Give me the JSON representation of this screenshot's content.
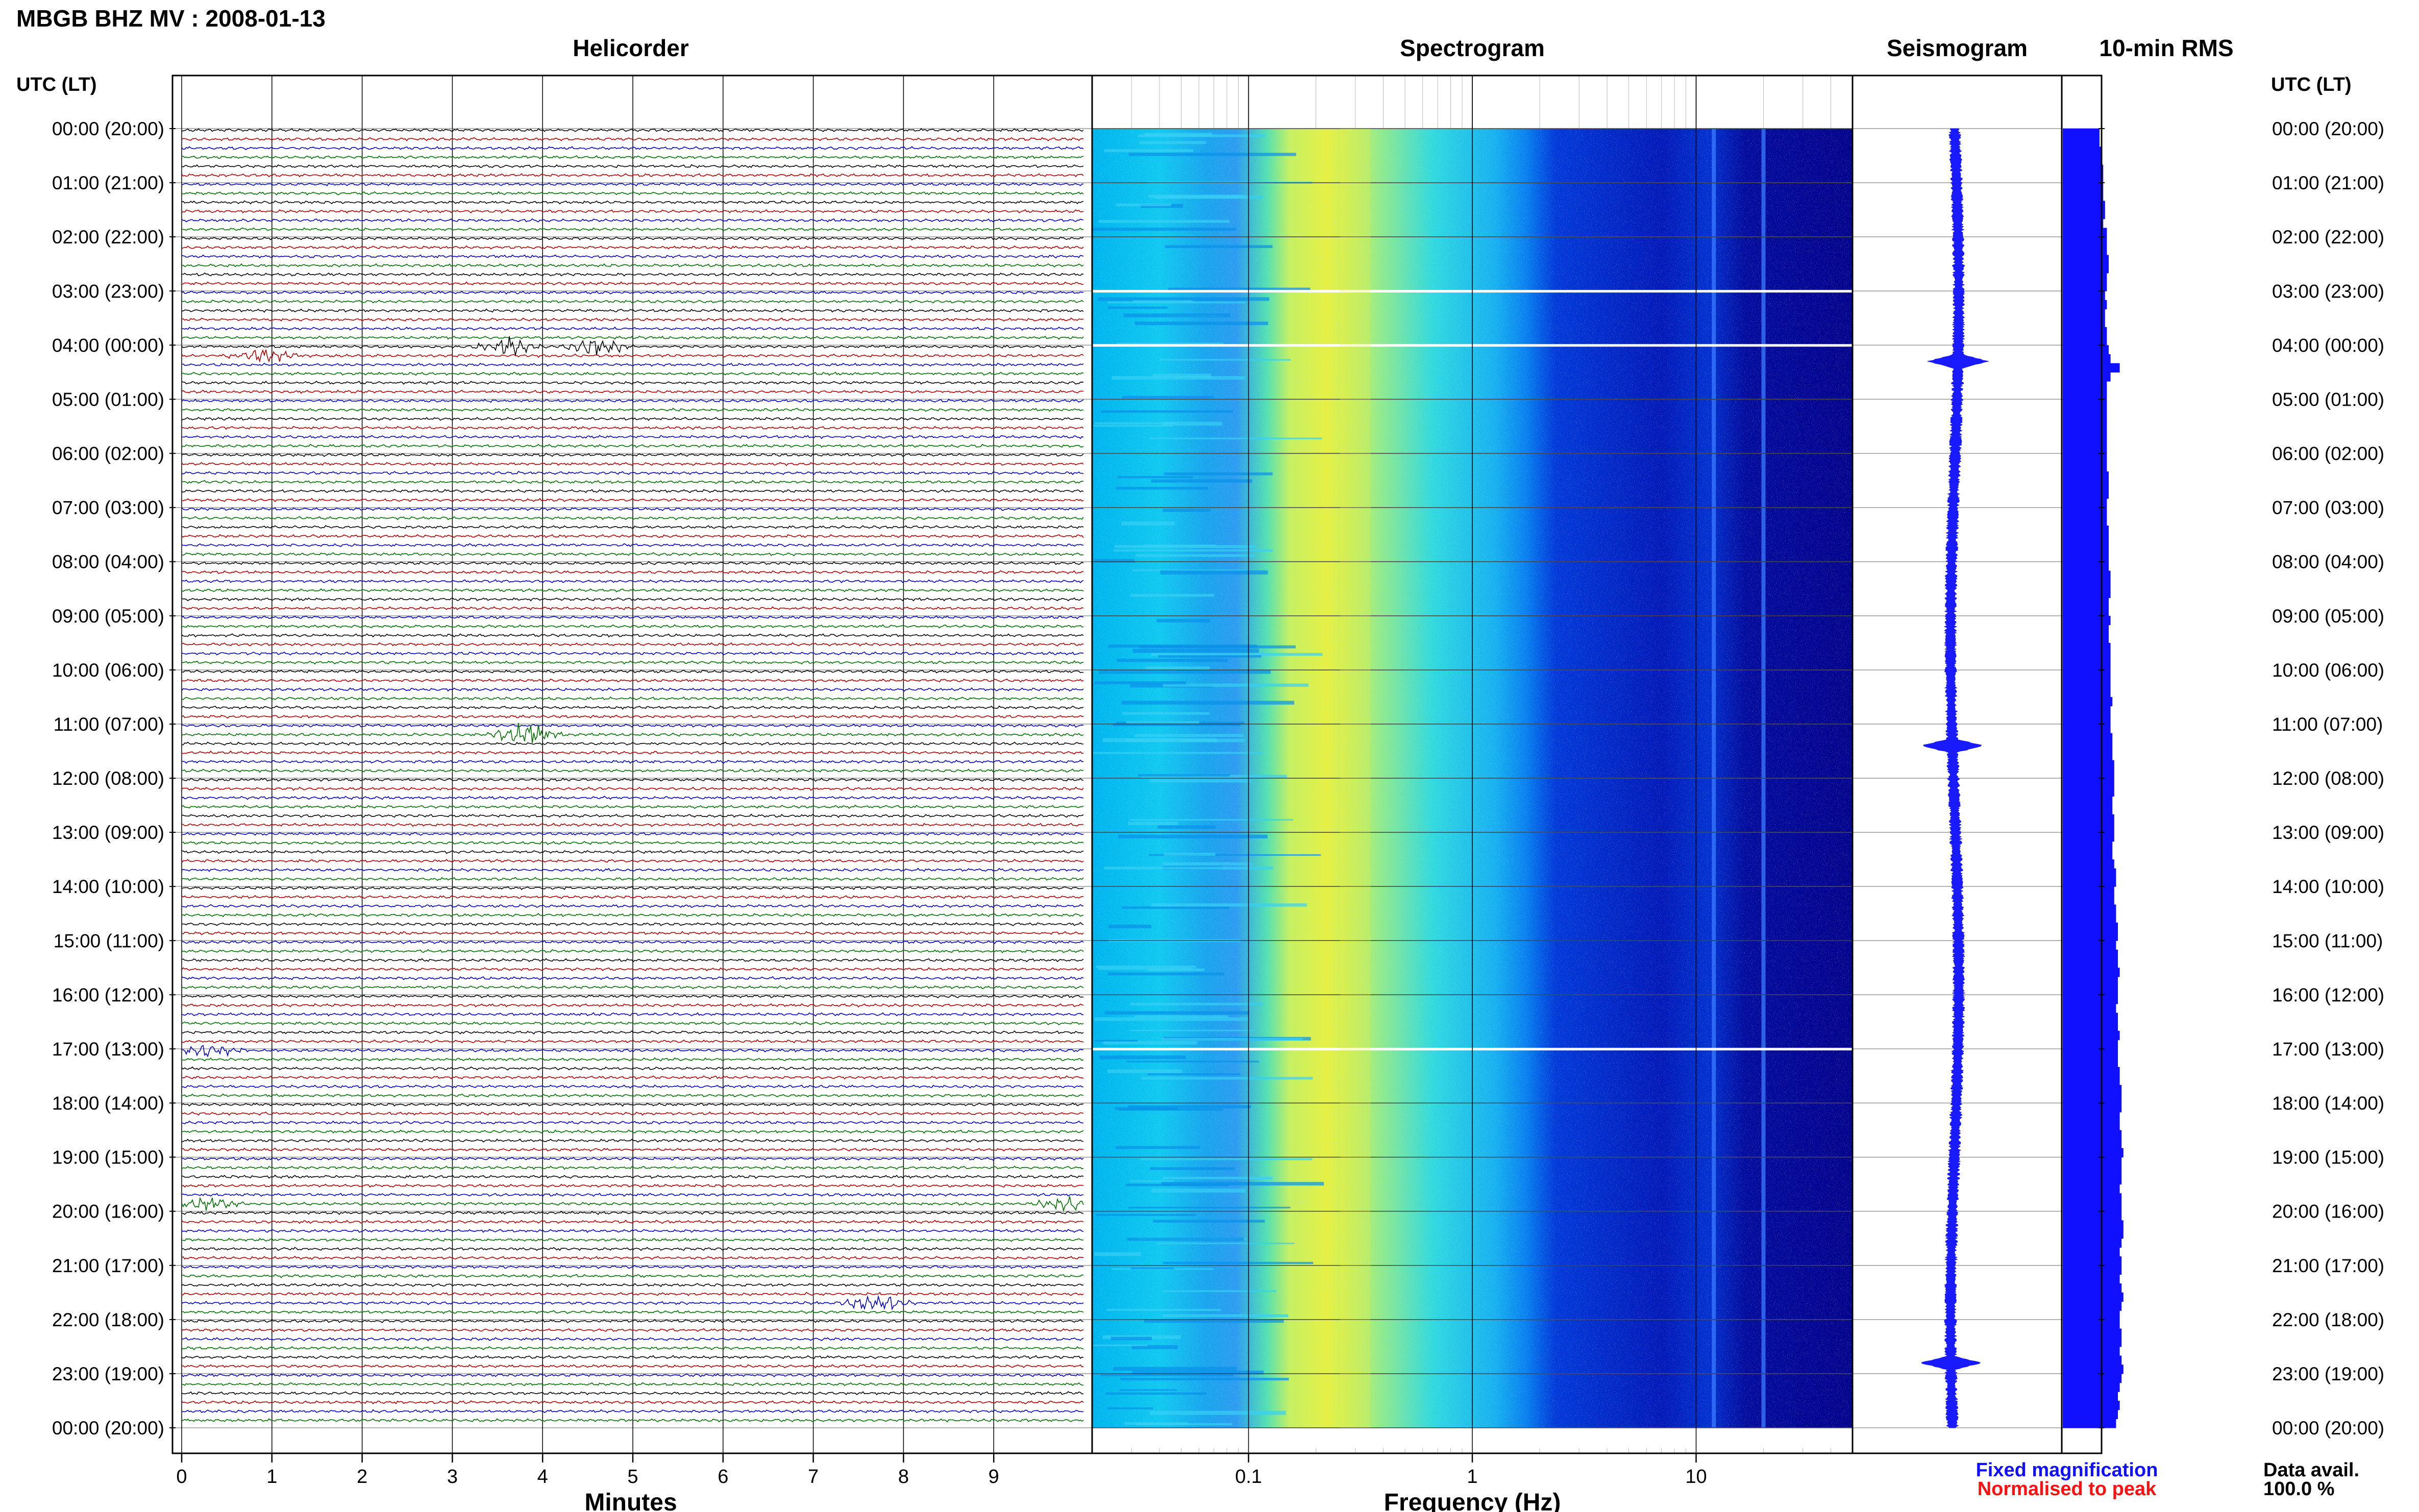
{
  "header": {
    "title": "MBGB BHZ MV : 2008-01-13",
    "utc_label_left": "UTC (LT)",
    "utc_label_right": "UTC (LT)"
  },
  "panels": {
    "helicorder": "Helicorder",
    "spectrogram": "Spectrogram",
    "seismogram": "Seismogram",
    "rms": "10-min RMS"
  },
  "time_labels": [
    "00:00 (20:00)",
    "01:00 (21:00)",
    "02:00 (22:00)",
    "03:00 (23:00)",
    "04:00 (00:00)",
    "05:00 (01:00)",
    "06:00 (02:00)",
    "07:00 (03:00)",
    "08:00 (04:00)",
    "09:00 (05:00)",
    "10:00 (06:00)",
    "11:00 (07:00)",
    "12:00 (08:00)",
    "13:00 (09:00)",
    "14:00 (10:00)",
    "15:00 (11:00)",
    "16:00 (12:00)",
    "17:00 (13:00)",
    "18:00 (14:00)",
    "19:00 (15:00)",
    "20:00 (16:00)",
    "21:00 (17:00)",
    "22:00 (18:00)",
    "23:00 (19:00)",
    "00:00 (20:00)"
  ],
  "chart_data": [
    {
      "type": "line",
      "panel": "helicorder",
      "xlabel": "Minutes",
      "x_ticks": [
        "0",
        "1",
        "2",
        "3",
        "4",
        "5",
        "6",
        "7",
        "8",
        "9"
      ],
      "xlim": [
        0,
        10
      ],
      "traces_per_hour": 6,
      "trace_minutes": 10,
      "trace_colors": [
        "#000000",
        "#b00000",
        "#0000c0",
        "#007000"
      ],
      "events": [
        {
          "hour": 4.17,
          "minute": 0.9,
          "amp": 2.5,
          "color": "#0000c0"
        },
        {
          "hour": 4.0,
          "minute": 3.6,
          "amp": 3.5,
          "color": "#b00000"
        },
        {
          "hour": 4.0,
          "minute": 4.6,
          "amp": 3.5,
          "color": "#b00000"
        },
        {
          "hour": 11.17,
          "minute": 3.8,
          "amp": 5,
          "color": "#000000"
        },
        {
          "hour": 17.0,
          "minute": 0.3,
          "amp": 2.5,
          "color": "#0000c0"
        },
        {
          "hour": 19.83,
          "minute": 0.3,
          "amp": 2.5,
          "color": "#007000"
        },
        {
          "hour": 19.83,
          "minute": 9.8,
          "amp": 2.5,
          "color": "#0000c0"
        },
        {
          "hour": 21.67,
          "minute": 7.7,
          "amp": 3.5,
          "color": "#0000c0"
        }
      ]
    },
    {
      "type": "heatmap",
      "panel": "spectrogram",
      "xlabel": "Frequency (Hz)",
      "x_scale": "log",
      "xlim": [
        0.02,
        50
      ],
      "x_ticks": [
        {
          "value": 0.1,
          "label": "0.1"
        },
        {
          "value": 1,
          "label": "1"
        },
        {
          "value": 10,
          "label": "10"
        }
      ],
      "peak_band_hz": 0.3,
      "gaps_hour": [
        3.0,
        4.0,
        17.0
      ],
      "spectral_lines_hz": [
        12,
        20
      ]
    },
    {
      "type": "line",
      "panel": "seismogram",
      "events_hour": [
        4.3,
        11.4,
        22.8
      ]
    },
    {
      "type": "bar",
      "panel": "rms",
      "x_values": [
        1.0,
        1.0,
        1.05,
        1.05,
        1.1,
        1.1,
        1.1,
        1.1,
        1.15,
        1.15,
        1.1,
        1.2,
        1.2,
        1.2,
        1.25,
        1.25,
        1.2,
        1.2,
        1.15,
        1.2,
        1.15,
        1.15,
        1.2,
        1.2,
        1.25,
        1.3,
        1.55,
        1.3,
        1.2,
        1.2,
        1.2,
        1.2,
        1.2,
        1.2,
        1.2,
        1.2,
        1.2,
        1.2,
        1.25,
        1.25,
        1.25,
        1.2,
        1.2,
        1.2,
        1.25,
        1.25,
        1.25,
        1.25,
        1.25,
        1.3,
        1.3,
        1.3,
        1.25,
        1.25,
        1.3,
        1.25,
        1.25,
        1.3,
        1.3,
        1.3,
        1.3,
        1.3,
        1.3,
        1.35,
        1.3,
        1.3,
        1.3,
        1.35,
        1.35,
        1.35,
        1.4,
        1.4,
        1.4,
        1.4,
        1.35,
        1.35,
        1.4,
        1.4,
        1.4,
        1.35,
        1.35,
        1.4,
        1.45,
        1.45,
        1.4,
        1.4,
        1.45,
        1.45,
        1.5,
        1.5,
        1.45,
        1.5,
        1.5,
        1.55,
        1.5,
        1.5,
        1.5,
        1.45,
        1.5,
        1.5,
        1.55,
        1.5,
        1.5,
        1.5,
        1.55,
        1.55,
        1.6,
        1.6,
        1.6,
        1.55,
        1.55,
        1.6,
        1.6,
        1.65,
        1.6,
        1.6,
        1.6,
        1.55,
        1.6,
        1.6,
        1.6,
        1.65,
        1.65,
        1.6,
        1.55,
        1.6,
        1.6,
        1.55,
        1.6,
        1.65,
        1.6,
        1.55,
        1.55,
        1.6,
        1.6,
        1.55,
        1.6,
        1.65,
        1.6,
        1.55,
        1.5,
        1.55,
        1.5,
        1.45
      ]
    }
  ],
  "footer": {
    "fixed_magnification": "Fixed magnification",
    "normalised_to_peak": "Normalised to peak",
    "fixed_color": "#1010ff",
    "normalised_color": "#ff1010",
    "data_avail_label": "Data avail.",
    "data_avail_value": "100.0 %"
  }
}
